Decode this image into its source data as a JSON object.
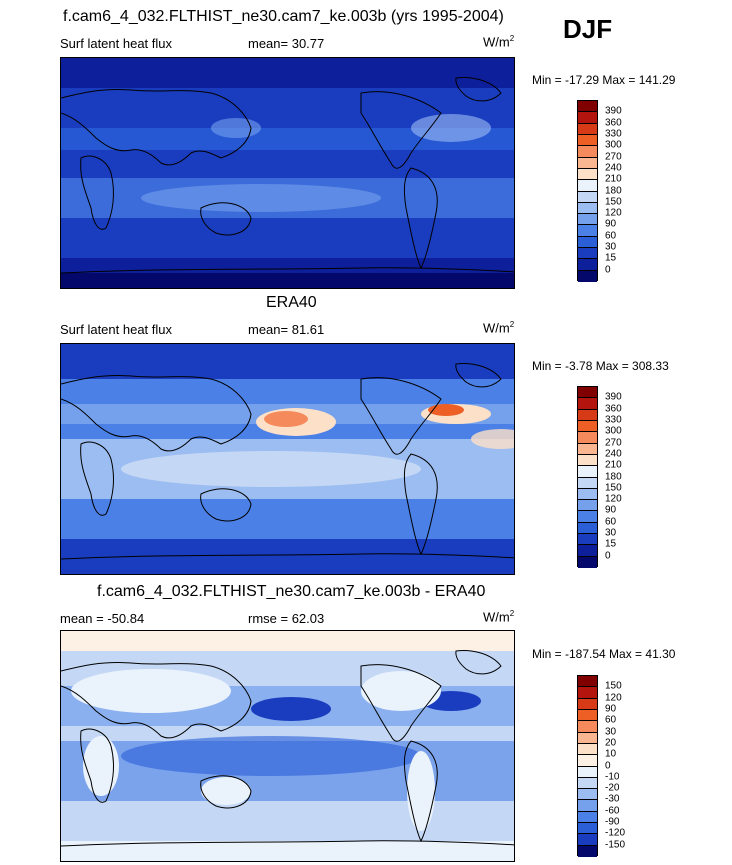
{
  "season": "DJF",
  "panels": [
    {
      "title": "f.cam6_4_032.FLTHIST_ne30.cam7_ke.003b (yrs 1995-2004)",
      "left_label": "Surf latent heat flux",
      "stat_text": "mean=  30.77",
      "units": "W/m",
      "units_exp": "2",
      "minmax": "Min = -17.29 Max = 141.29",
      "colorbar": {
        "levels": [
          "390",
          "360",
          "330",
          "300",
          "270",
          "240",
          "210",
          "180",
          "150",
          "120",
          "90",
          "60",
          "30",
          "15",
          "0"
        ],
        "colors": [
          "#800000",
          "#b3150e",
          "#d73a16",
          "#ee5f26",
          "#f58b5c",
          "#f9b690",
          "#fde0c8",
          "#eaf2fc",
          "#c4d8f6",
          "#9cbdf1",
          "#74a0ec",
          "#4b80e6",
          "#2a5fd8",
          "#1a3dc0",
          "#0e1f9c",
          "#04086a"
        ]
      }
    },
    {
      "title": "ERA40",
      "left_label": "Surf latent heat flux",
      "stat_text": "mean=  81.61",
      "units": "W/m",
      "units_exp": "2",
      "minmax": "Min =  -3.78 Max = 308.33",
      "colorbar": {
        "levels": [
          "390",
          "360",
          "330",
          "300",
          "270",
          "240",
          "210",
          "180",
          "150",
          "120",
          "90",
          "60",
          "30",
          "15",
          "0"
        ],
        "colors": [
          "#800000",
          "#b3150e",
          "#d73a16",
          "#ee5f26",
          "#f58b5c",
          "#f9b690",
          "#fde0c8",
          "#eaf2fc",
          "#c4d8f6",
          "#9cbdf1",
          "#74a0ec",
          "#4b80e6",
          "#2a5fd8",
          "#1a3dc0",
          "#0e1f9c",
          "#04086a"
        ]
      }
    },
    {
      "title": "f.cam6_4_032.FLTHIST_ne30.cam7_ke.003b - ERA40",
      "left_label": "mean = -50.84",
      "stat_text": "rmse =  62.03",
      "units": "W/m",
      "units_exp": "2",
      "minmax": "Min = -187.54 Max =  41.30",
      "colorbar": {
        "levels": [
          "150",
          "120",
          "90",
          "60",
          "30",
          "20",
          "10",
          "0",
          "-10",
          "-20",
          "-30",
          "-60",
          "-90",
          "-120",
          "-150"
        ],
        "colors": [
          "#800000",
          "#b3150e",
          "#d73a16",
          "#ee5f26",
          "#f58b5c",
          "#f9b690",
          "#fde0c8",
          "#fdf1e6",
          "#eaf2fc",
          "#c4d8f6",
          "#9cbdf1",
          "#74a0ec",
          "#4b80e6",
          "#2a5fd8",
          "#1a3dc0",
          "#04086a"
        ]
      }
    }
  ],
  "chart_data": [
    {
      "type": "heatmap",
      "title": "f.cam6_4_032.FLTHIST_ne30.cam7_ke.003b (yrs 1995-2004)",
      "variable": "Surf latent heat flux",
      "units": "W/m2",
      "mean": 30.77,
      "min": -17.29,
      "max": 141.29,
      "contour_levels": [
        0,
        15,
        30,
        60,
        90,
        120,
        150,
        180,
        210,
        240,
        270,
        300,
        330,
        360,
        390
      ]
    },
    {
      "type": "heatmap",
      "title": "ERA40",
      "variable": "Surf latent heat flux",
      "units": "W/m2",
      "mean": 81.61,
      "min": -3.78,
      "max": 308.33,
      "contour_levels": [
        0,
        15,
        30,
        60,
        90,
        120,
        150,
        180,
        210,
        240,
        270,
        300,
        330,
        360,
        390
      ]
    },
    {
      "type": "heatmap",
      "title": "f.cam6_4_032.FLTHIST_ne30.cam7_ke.003b - ERA40",
      "units": "W/m2",
      "mean": -50.84,
      "rmse": 62.03,
      "min": -187.54,
      "max": 41.3,
      "contour_levels": [
        -150,
        -120,
        -90,
        -60,
        -30,
        -20,
        -10,
        0,
        10,
        20,
        30,
        60,
        90,
        120,
        150
      ]
    }
  ]
}
